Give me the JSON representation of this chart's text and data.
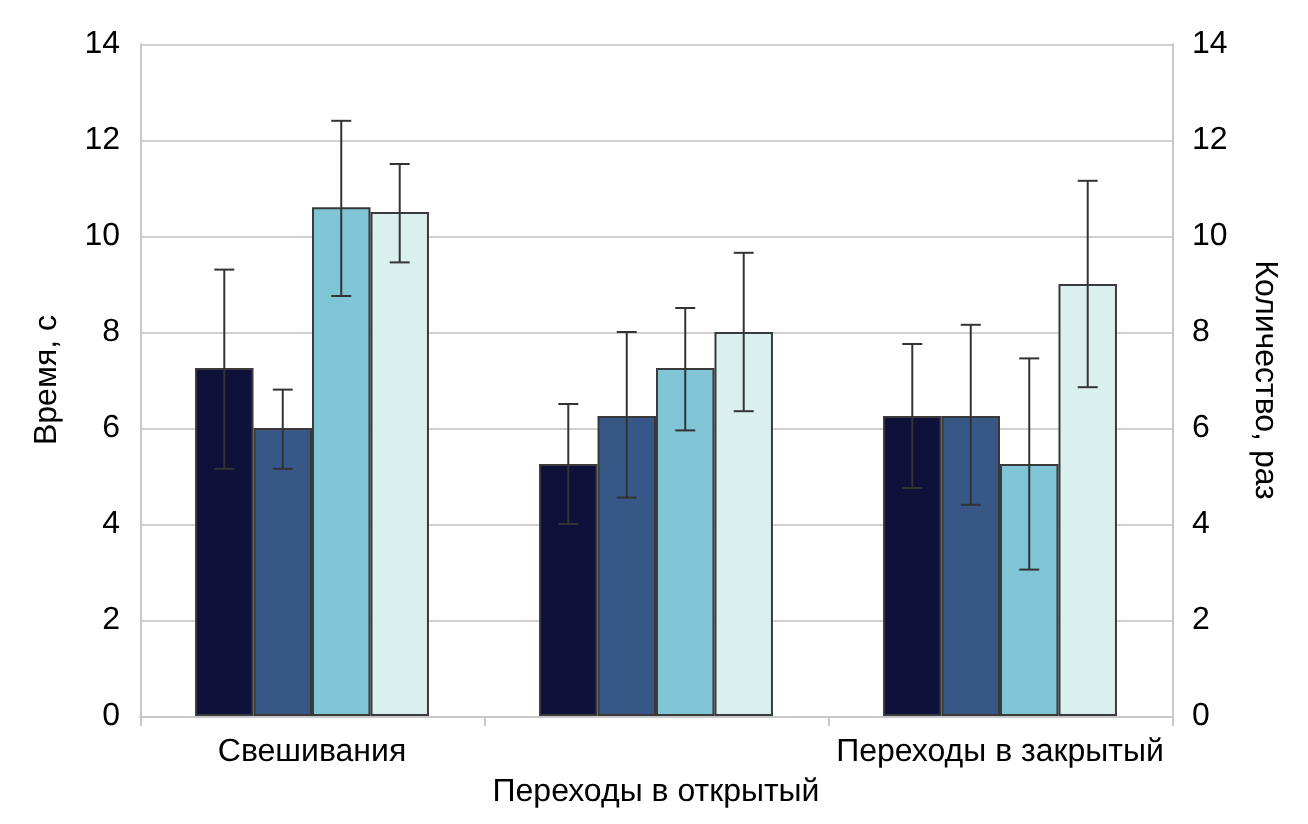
{
  "chart_data": {
    "type": "bar",
    "ylabel": "Время, с",
    "y2label": "Количество, раз",
    "categories": [
      "Свешивания",
      "Переходы в открытый",
      "Переходы в закрытый"
    ],
    "series": [
      {
        "color": "#10113a",
        "values": [
          7.25,
          5.25,
          6.25
        ],
        "errors": [
          [
            5.15,
            9.3
          ],
          [
            4.0,
            6.5
          ],
          [
            4.75,
            7.75
          ]
        ]
      },
      {
        "color": "#375787",
        "values": [
          6.0,
          6.25,
          6.25
        ],
        "errors": [
          [
            5.15,
            6.8
          ],
          [
            4.55,
            8.0
          ],
          [
            4.4,
            8.15
          ]
        ]
      },
      {
        "color": "#7fc5d6",
        "values": [
          10.6,
          7.25,
          5.25
        ],
        "errors": [
          [
            8.75,
            12.4
          ],
          [
            5.95,
            8.5
          ],
          [
            3.05,
            7.45
          ]
        ]
      },
      {
        "color": "#d9f0ef",
        "values": [
          10.5,
          8.0,
          9.0
        ],
        "errors": [
          [
            9.45,
            11.5
          ],
          [
            6.35,
            9.65
          ],
          [
            6.85,
            11.15
          ]
        ]
      }
    ],
    "ylim": [
      0,
      14
    ],
    "yticks": [
      0,
      2,
      4,
      6,
      8,
      10,
      12,
      14
    ],
    "y2lim": [
      0,
      14
    ],
    "y2ticks": [
      0,
      2,
      4,
      6,
      8,
      10,
      12,
      14
    ],
    "grid": "y"
  }
}
